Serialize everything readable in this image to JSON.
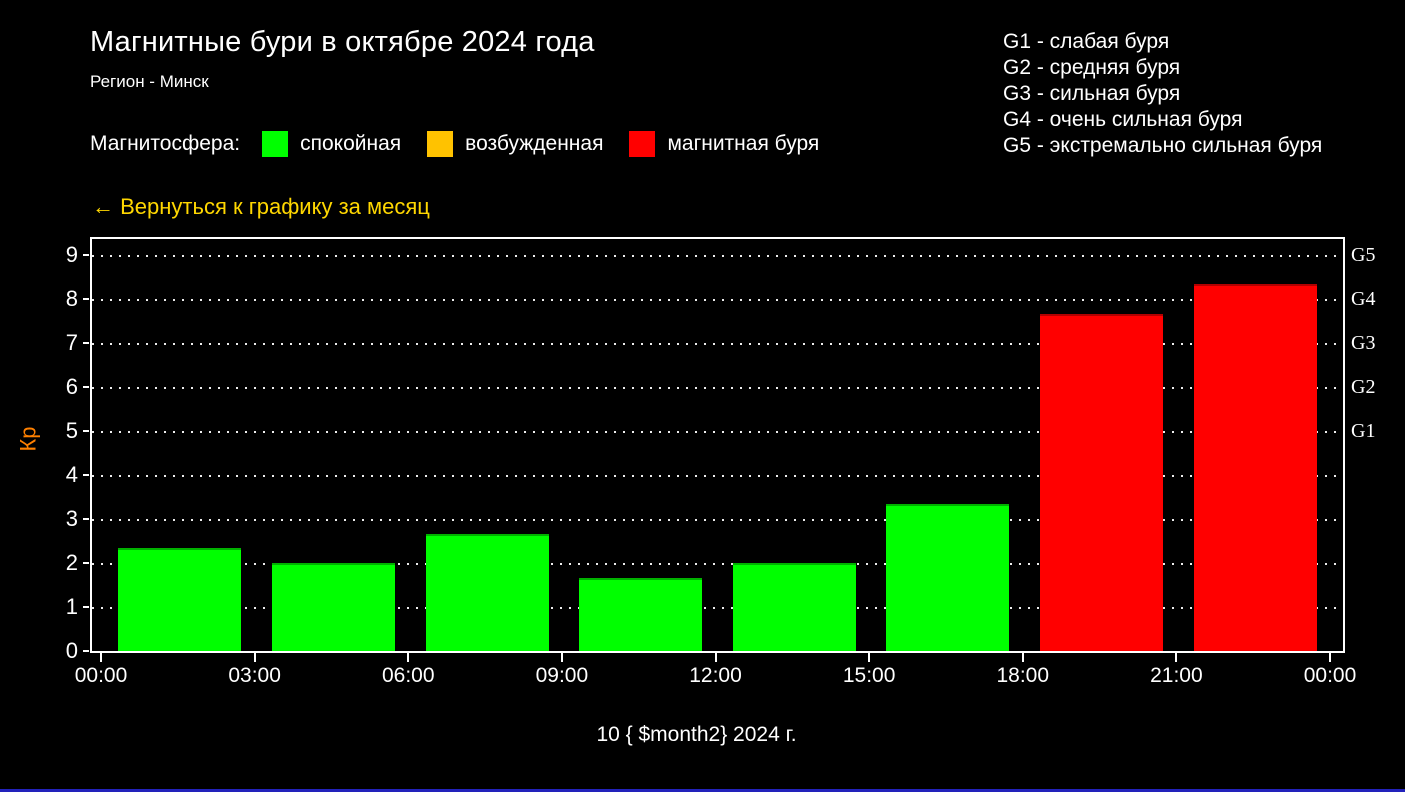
{
  "page": {
    "background_color": "#000000",
    "accent_line_color": "#2222bb"
  },
  "header": {
    "title": "Магнитные бури в октябре 2024 года",
    "subtitle": "Регион - Минск"
  },
  "storm_scale": {
    "items": [
      "G1 - слабая буря",
      "G2 - средняя буря",
      "G3 - сильная буря",
      "G4 - очень сильная буря",
      "G5 - экстремально сильная буря"
    ]
  },
  "magnetosphere_legend": {
    "title": "Магнитосфера:",
    "items": [
      {
        "label": "спокойная",
        "color": "#00ff00"
      },
      {
        "label": "возбужденная",
        "color": "#ffc200"
      },
      {
        "label": "магнитная буря",
        "color": "#ff0000"
      }
    ]
  },
  "back_link": {
    "label": "← Вернуться к графику за месяц",
    "color": "#ffd700"
  },
  "chart_data": {
    "type": "bar",
    "xlabel": "10 { $month2} 2024 г.",
    "ylabel": "Кр",
    "ylabel_color": "#ff8000",
    "x_tick_labels": [
      "00:00",
      "03:00",
      "06:00",
      "09:00",
      "12:00",
      "15:00",
      "18:00",
      "21:00",
      "00:00"
    ],
    "categories": [
      "00:00–03:00",
      "03:00–06:00",
      "06:00–09:00",
      "09:00–12:00",
      "12:00–15:00",
      "15:00–18:00",
      "18:00–21:00",
      "21:00–00:00"
    ],
    "values": [
      2.33,
      2.0,
      2.67,
      1.67,
      2.0,
      3.33,
      7.67,
      8.33
    ],
    "bar_colors": [
      "#00ff00",
      "#00ff00",
      "#00ff00",
      "#00ff00",
      "#00ff00",
      "#00ff00",
      "#ff0000",
      "#ff0000"
    ],
    "ylim": [
      0,
      9
    ],
    "yticks": [
      0,
      1,
      2,
      3,
      4,
      5,
      6,
      7,
      8,
      9
    ],
    "grid": "horizontal-dotted",
    "legend_position": "top-left",
    "right_axis": {
      "labels": [
        "G1",
        "G2",
        "G3",
        "G4",
        "G5"
      ],
      "kp_positions": [
        5,
        6,
        7,
        8,
        9
      ]
    }
  }
}
